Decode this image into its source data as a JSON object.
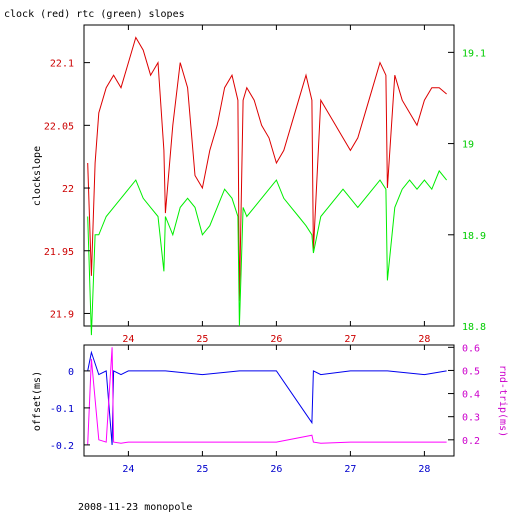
{
  "title": "clock (red) rtc (green) slopes",
  "footer": "2008-11-23 monopole",
  "colors": {
    "red": "#dd0000",
    "green": "#00ee00",
    "blue": "#0000ee",
    "magenta": "#ff00ff",
    "axis_red": "#cc0000",
    "axis_green": "#00cc00",
    "axis_blue": "#0000cc",
    "axis_magenta": "#cc00cc"
  },
  "chart_data": [
    {
      "type": "line",
      "ylabel": "clockslope",
      "xlim": [
        23.4,
        28.4
      ],
      "x_ticks": [
        "24",
        "25",
        "26",
        "27",
        "28"
      ],
      "x_tick_values": [
        24,
        25,
        26,
        27,
        28
      ],
      "ylim_left": [
        21.89,
        22.13
      ],
      "y_ticks_left": [
        "21.9",
        "21.95",
        "22",
        "22.05",
        "22.1"
      ],
      "y_tick_values_left": [
        21.9,
        21.95,
        22.0,
        22.05,
        22.1
      ],
      "ylim_right": [
        18.8,
        19.13
      ],
      "y_ticks_right": [
        "18.8",
        "18.9",
        "19",
        "19.1"
      ],
      "y_tick_values_right": [
        18.8,
        18.9,
        19.0,
        19.1
      ],
      "series": [
        {
          "color": "red",
          "axis": "left",
          "x": [
            23.45,
            23.5,
            23.55,
            23.6,
            23.7,
            23.8,
            23.9,
            24.0,
            24.1,
            24.2,
            24.3,
            24.4,
            24.48,
            24.5,
            24.6,
            24.7,
            24.8,
            24.9,
            25.0,
            25.1,
            25.2,
            25.3,
            25.4,
            25.48,
            25.5,
            25.55,
            25.6,
            25.7,
            25.8,
            25.9,
            26.0,
            26.1,
            26.2,
            26.3,
            26.4,
            26.48,
            26.5,
            26.6,
            26.7,
            26.8,
            26.9,
            27.0,
            27.1,
            27.2,
            27.3,
            27.4,
            27.48,
            27.5,
            27.6,
            27.7,
            27.8,
            27.9,
            28.0,
            28.1,
            28.2,
            28.3
          ],
          "y": [
            22.02,
            21.93,
            22.02,
            22.06,
            22.08,
            22.09,
            22.08,
            22.1,
            22.12,
            22.11,
            22.09,
            22.1,
            22.03,
            21.98,
            22.05,
            22.1,
            22.08,
            22.01,
            22.0,
            22.03,
            22.05,
            22.08,
            22.09,
            22.07,
            21.91,
            22.07,
            22.08,
            22.07,
            22.05,
            22.04,
            22.02,
            22.03,
            22.05,
            22.07,
            22.09,
            22.07,
            21.95,
            22.07,
            22.06,
            22.05,
            22.04,
            22.03,
            22.04,
            22.06,
            22.08,
            22.1,
            22.09,
            22.0,
            22.09,
            22.07,
            22.06,
            22.05,
            22.07,
            22.08,
            22.08,
            22.075
          ]
        },
        {
          "color": "green",
          "axis": "right",
          "x": [
            23.45,
            23.5,
            23.55,
            23.6,
            23.7,
            23.8,
            23.9,
            24.0,
            24.1,
            24.2,
            24.3,
            24.4,
            24.48,
            24.5,
            24.6,
            24.7,
            24.8,
            24.9,
            25.0,
            25.1,
            25.2,
            25.3,
            25.4,
            25.48,
            25.5,
            25.55,
            25.6,
            25.7,
            25.8,
            25.9,
            26.0,
            26.1,
            26.2,
            26.3,
            26.4,
            26.48,
            26.5,
            26.6,
            26.7,
            26.8,
            26.9,
            27.0,
            27.1,
            27.2,
            27.3,
            27.4,
            27.48,
            27.5,
            27.6,
            27.7,
            27.8,
            27.9,
            28.0,
            28.1,
            28.2,
            28.3
          ],
          "y": [
            18.92,
            18.79,
            18.9,
            18.9,
            18.92,
            18.93,
            18.94,
            18.95,
            18.96,
            18.94,
            18.93,
            18.92,
            18.86,
            18.92,
            18.9,
            18.93,
            18.94,
            18.93,
            18.9,
            18.91,
            18.93,
            18.95,
            18.94,
            18.92,
            18.8,
            18.93,
            18.92,
            18.93,
            18.94,
            18.95,
            18.96,
            18.94,
            18.93,
            18.92,
            18.91,
            18.9,
            18.88,
            18.92,
            18.93,
            18.94,
            18.95,
            18.94,
            18.93,
            18.94,
            18.95,
            18.96,
            18.95,
            18.85,
            18.93,
            18.95,
            18.96,
            18.95,
            18.96,
            18.95,
            18.97,
            18.96
          ]
        }
      ]
    },
    {
      "type": "line",
      "ylabel_left": "offset(ms)",
      "ylabel_right": "rnd-trip(ms)",
      "xlim": [
        23.4,
        28.4
      ],
      "x_ticks": [
        "24",
        "25",
        "26",
        "27",
        "28"
      ],
      "x_tick_values": [
        24,
        25,
        26,
        27,
        28
      ],
      "ylim_left": [
        -0.23,
        0.07
      ],
      "y_ticks_left": [
        "-0.2",
        "-0.1",
        "0"
      ],
      "y_tick_values_left": [
        -0.2,
        -0.1,
        0
      ],
      "ylim_right": [
        0.13,
        0.61
      ],
      "y_ticks_right": [
        "0.2",
        "0.3",
        "0.4",
        "0.5",
        "0.6"
      ],
      "y_tick_values_right": [
        0.2,
        0.3,
        0.4,
        0.5,
        0.6
      ],
      "series": [
        {
          "color": "blue",
          "axis": "left",
          "x": [
            23.45,
            23.5,
            23.6,
            23.7,
            23.78,
            23.8,
            23.9,
            24.0,
            24.5,
            25.0,
            25.5,
            26.0,
            26.48,
            26.5,
            26.6,
            27.0,
            27.5,
            28.0,
            28.3
          ],
          "y": [
            0.0,
            0.05,
            -0.01,
            0.0,
            -0.2,
            0.0,
            -0.01,
            0.0,
            0.0,
            -0.01,
            0.0,
            0.0,
            -0.14,
            0.0,
            -0.01,
            0.0,
            0.0,
            -0.01,
            0.0
          ]
        },
        {
          "color": "magenta",
          "axis": "right",
          "x": [
            23.45,
            23.5,
            23.6,
            23.7,
            23.78,
            23.8,
            23.9,
            24.0,
            24.5,
            25.0,
            25.5,
            26.0,
            26.48,
            26.5,
            26.6,
            27.0,
            27.5,
            28.0,
            28.3
          ],
          "y": [
            0.18,
            0.55,
            0.2,
            0.19,
            0.6,
            0.19,
            0.185,
            0.19,
            0.19,
            0.19,
            0.19,
            0.19,
            0.22,
            0.19,
            0.185,
            0.19,
            0.19,
            0.19,
            0.19
          ]
        }
      ]
    }
  ]
}
